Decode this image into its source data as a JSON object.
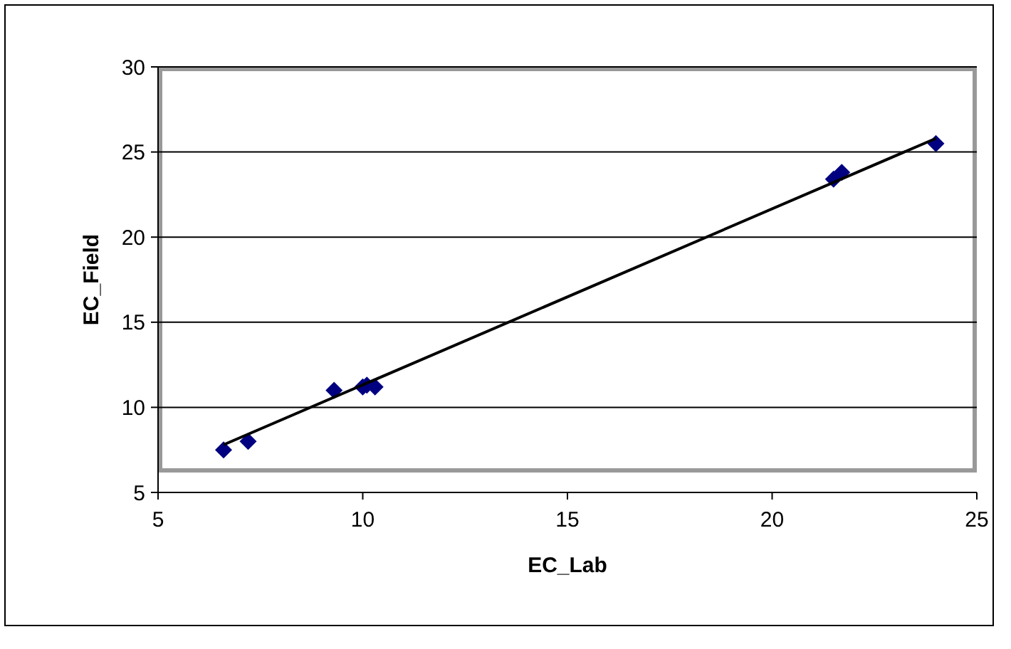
{
  "chart_data": {
    "type": "scatter",
    "xlabel": "EC_Lab",
    "ylabel": "EC_Field",
    "xlim": [
      5,
      25
    ],
    "xticks": [
      5,
      10,
      15,
      20,
      25
    ],
    "ylim": [
      5,
      30
    ],
    "yticks": [
      5,
      10,
      15,
      20,
      25,
      30
    ],
    "grid": "y",
    "series": [
      {
        "color": "#000080",
        "marker": "diamond",
        "x": [
          6.6,
          7.2,
          9.3,
          10.0,
          10.1,
          10.3,
          21.5,
          21.7,
          24.0
        ],
        "values": [
          7.5,
          8.0,
          11.0,
          11.2,
          11.3,
          11.2,
          23.4,
          23.8,
          25.5
        ]
      },
      {
        "type": "line",
        "color": "#000000",
        "x": [
          6.6,
          24.0
        ],
        "values": [
          7.8,
          25.8
        ],
        "marker": "none",
        "line_style": "solid"
      }
    ]
  }
}
